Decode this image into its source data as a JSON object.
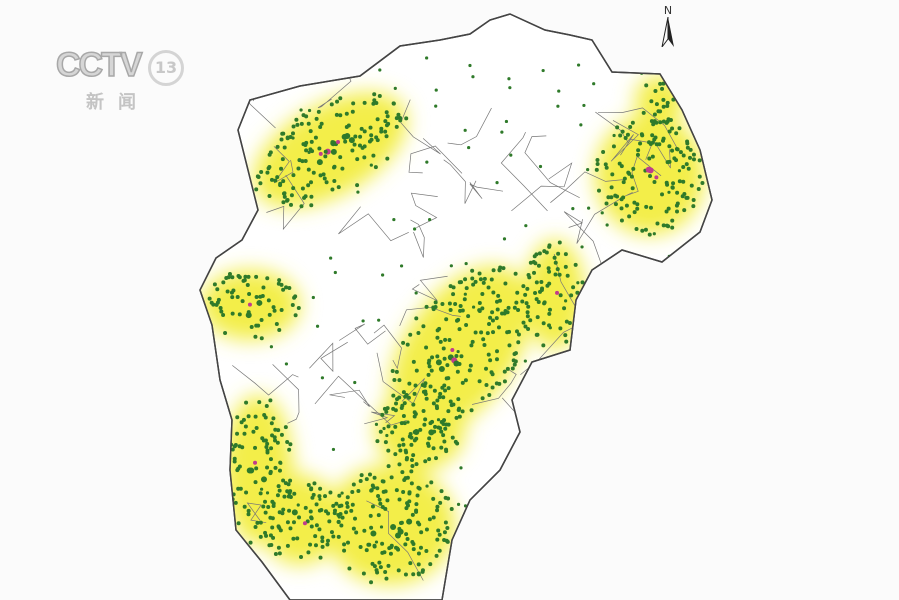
{
  "logo": {
    "channel": "CCTV",
    "number": "13",
    "subtitle": "新闻"
  },
  "map": {
    "north_label": "N",
    "colors": {
      "background": "#fbfbfb",
      "region_fill": "#ffffff",
      "border": "#555555",
      "buffer": "#f3ee4a",
      "dots": "#2f7a2a",
      "hotspot": "#c03c8c"
    }
  }
}
